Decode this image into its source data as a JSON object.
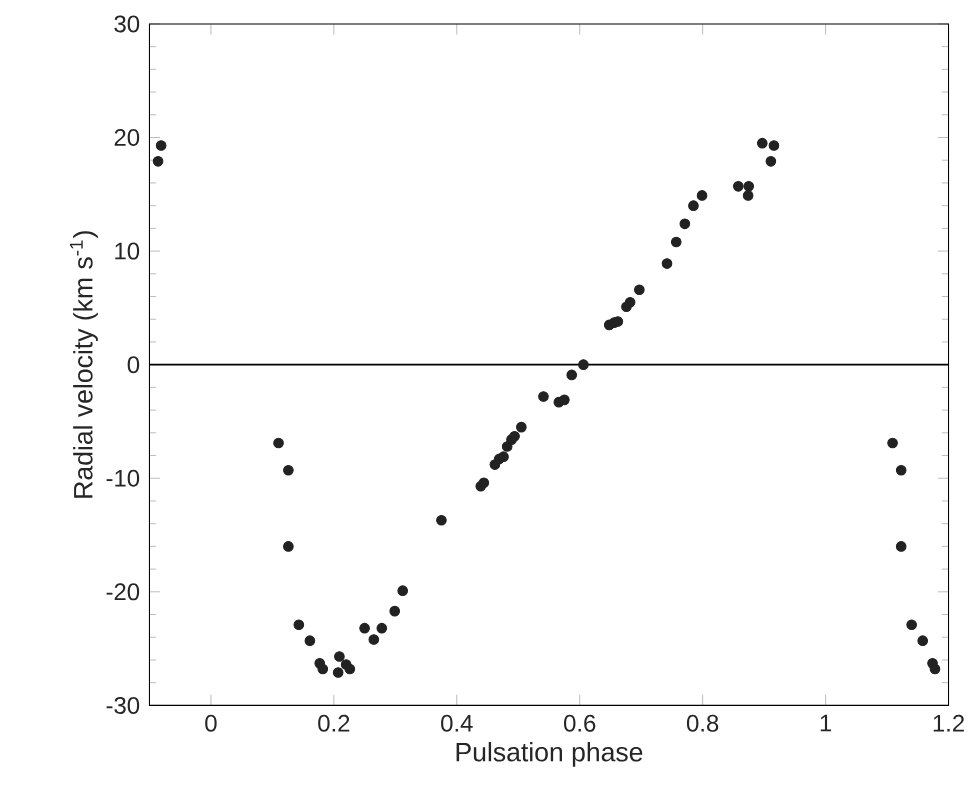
{
  "chart_data": {
    "type": "scatter",
    "xlabel": "Pulsation phase",
    "ylabel": "Radial velocity (km s$^{-1}$)",
    "xlim": [
      -0.1,
      1.2
    ],
    "ylim": [
      -30,
      30
    ],
    "xticks": [
      0,
      0.2,
      0.4,
      0.6,
      0.8,
      1,
      1.2
    ],
    "yticks": [
      -30,
      -20,
      -10,
      0,
      10,
      20,
      30
    ],
    "grid": false,
    "marker": "circle",
    "ref_lines": [
      {
        "axis": "y",
        "value": 0,
        "color": "#000000"
      }
    ],
    "series": [
      {
        "color": "#222222",
        "x": [
          -0.086,
          -0.081,
          0.11,
          0.126,
          0.126,
          0.143,
          0.161,
          0.177,
          0.182,
          0.209,
          0.207,
          0.22,
          0.226,
          0.25,
          0.265,
          0.278,
          0.299,
          0.312,
          0.375,
          0.439,
          0.444,
          0.462,
          0.469,
          0.476,
          0.482,
          0.489,
          0.494,
          0.505,
          0.541,
          0.566,
          0.575,
          0.587,
          0.606,
          0.648,
          0.656,
          0.662,
          0.676,
          0.682,
          0.697,
          0.742,
          0.757,
          0.771,
          0.785,
          0.799,
          0.858,
          0.875,
          0.874,
          0.897,
          0.916,
          0.911,
          1.109,
          1.123,
          1.123,
          1.14,
          1.158,
          1.174,
          1.178
        ],
        "values": [
          17.9,
          19.3,
          -6.9,
          -9.3,
          -16.0,
          -22.9,
          -24.3,
          -26.3,
          -26.8,
          -25.7,
          -27.1,
          -26.4,
          -26.8,
          -23.2,
          -24.2,
          -23.2,
          -21.7,
          -19.9,
          -13.7,
          -10.7,
          -10.4,
          -8.8,
          -8.3,
          -8.1,
          -7.2,
          -6.6,
          -6.3,
          -5.5,
          -2.8,
          -3.3,
          -3.1,
          -0.9,
          0.0,
          3.5,
          3.7,
          3.8,
          5.1,
          5.5,
          6.6,
          8.9,
          10.8,
          12.4,
          14.0,
          14.9,
          15.7,
          15.7,
          14.9,
          19.5,
          19.3,
          17.9,
          -6.9,
          -9.3,
          -16.0,
          -22.9,
          -24.3,
          -26.3,
          -26.8
        ]
      }
    ]
  }
}
